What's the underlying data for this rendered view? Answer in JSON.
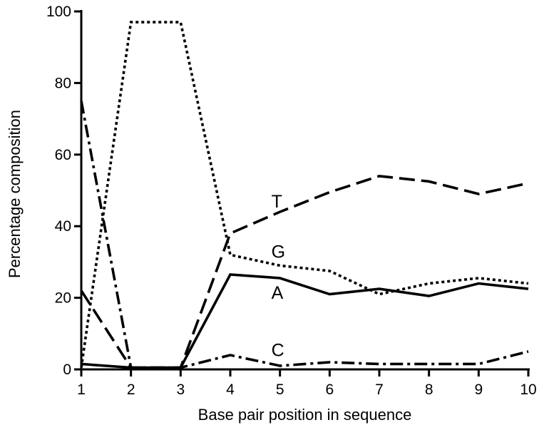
{
  "chart_data": {
    "type": "line",
    "title": "",
    "xlabel": "Base pair position in sequence",
    "ylabel": "Percentage composition",
    "x": [
      1,
      2,
      3,
      4,
      5,
      6,
      7,
      8,
      9,
      10
    ],
    "xlim": [
      1,
      10
    ],
    "ylim": [
      0,
      100
    ],
    "xticks": [
      "1",
      "2",
      "3",
      "4",
      "5",
      "6",
      "7",
      "8",
      "9",
      "10"
    ],
    "yticks": [
      "0",
      "20",
      "40",
      "60",
      "80",
      "100"
    ],
    "grid": false,
    "legend": "none",
    "series": [
      {
        "label": "T",
        "style": "dashed",
        "values": [
          22,
          0.5,
          0.5,
          38,
          44,
          49.5,
          54,
          52.5,
          49,
          52
        ],
        "label_at": [
          5,
          47
        ]
      },
      {
        "label": "G",
        "style": "dotted",
        "values": [
          0.5,
          97,
          97,
          32,
          29,
          27.5,
          21,
          24,
          25.5,
          24
        ],
        "label_at": [
          5,
          33
        ]
      },
      {
        "label": "A",
        "style": "solid",
        "values": [
          1.5,
          0.5,
          0.5,
          26.5,
          25.5,
          21,
          22.5,
          20.5,
          24,
          22.5
        ],
        "label_at": [
          5,
          21.5
        ]
      },
      {
        "label": "C",
        "style": "dashdot",
        "values": [
          75,
          0.5,
          0.5,
          4,
          1,
          2,
          1.5,
          1.5,
          1.5,
          5
        ],
        "label_at": [
          5,
          5.5
        ]
      }
    ]
  }
}
